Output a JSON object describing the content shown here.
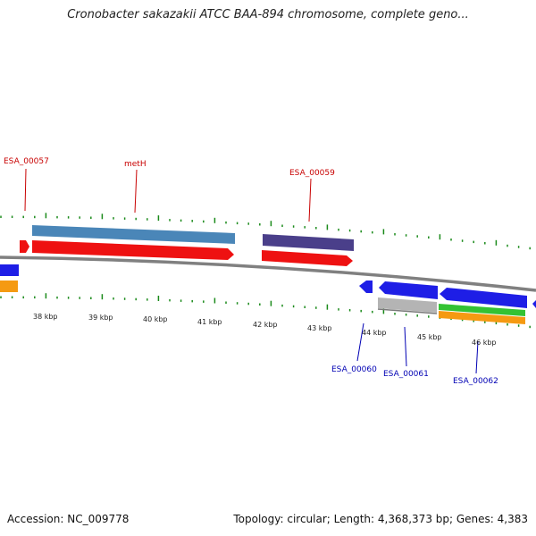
{
  "title": "Cronobacter sakazakii ATCC BAA-894 chromosome, complete geno...",
  "footer": {
    "accession": "Accession: NC_009778",
    "topology": "Topology: circular; Length: 4,368,373 bp; Genes: 4,383"
  },
  "kbp_labels": [
    "38 kbp",
    "39 kbp",
    "40 kbp",
    "41 kbp",
    "42 kbp",
    "43 kbp",
    "44 kbp",
    "45 kbp",
    "46 kbp"
  ],
  "gene_labels_top": [
    "ESA_00057",
    "metH",
    "ESA_00059"
  ],
  "gene_labels_bottom": [
    "ESA_00060",
    "ESA_00061",
    "ESA_00062"
  ],
  "colors": {
    "backbone": "#808080",
    "tick": "#1a8a1a",
    "cds_red": "#ee1111",
    "gene_steelblue": "#4a86b8",
    "gene_purple": "#4a3f8a",
    "cds_blue": "#1e1ee6",
    "gene_gray": "#b4b4b4",
    "gene_green": "#33c233",
    "gene_orange": "#f59a12"
  }
}
